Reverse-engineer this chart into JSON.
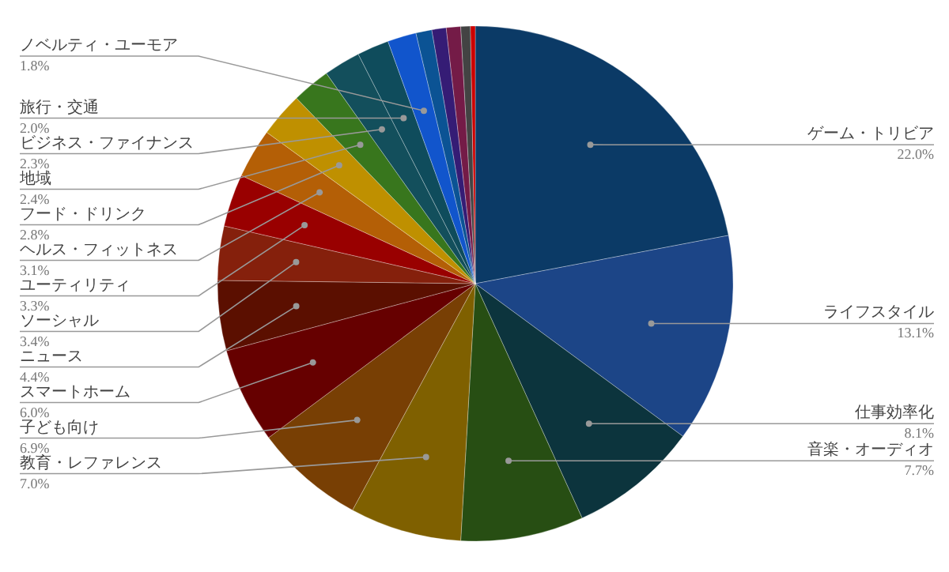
{
  "chart_data": {
    "type": "pie",
    "categories": [
      "ゲーム・トリビア",
      "ライフスタイル",
      "仕事効率化",
      "音楽・オーディオ",
      "教育・レファレンス",
      "子ども向け",
      "スマートホーム",
      "ニュース",
      "ソーシャル",
      "ユーティリティ",
      "ヘルス・フィットネス",
      "フード・ドリンク",
      "地域",
      "ビジネス・ファイナンス",
      "旅行・交通",
      "ノベルティ・ユーモア",
      null,
      null,
      null,
      null,
      null
    ],
    "values": [
      22.0,
      13.1,
      8.1,
      7.7,
      7.0,
      6.9,
      6.0,
      4.4,
      3.4,
      3.3,
      3.1,
      2.8,
      2.4,
      2.3,
      2.0,
      1.8,
      1.0,
      0.9,
      0.9,
      0.6,
      0.3
    ],
    "value_labels": [
      "22.0%",
      "13.1%",
      "8.1%",
      "7.7%",
      "7.0%",
      "6.9%",
      "6.0%",
      "4.4%",
      "3.4%",
      "3.3%",
      "3.1%",
      "2.8%",
      "2.4%",
      "2.3%",
      "2.0%",
      "1.8%",
      null,
      null,
      null,
      null,
      null
    ],
    "colors": [
      "#0b3a66",
      "#1c4587",
      "#0c343d",
      "#274e13",
      "#7f6000",
      "#783f04",
      "#660000",
      "#5b0f00",
      "#85200c",
      "#990000",
      "#b45f06",
      "#bf9000",
      "#38761d",
      "#134f5c",
      "#0f4c5c",
      "#1155cc",
      "#0b5394",
      "#351c75",
      "#741b47",
      "#434343",
      "#cc0000"
    ]
  }
}
